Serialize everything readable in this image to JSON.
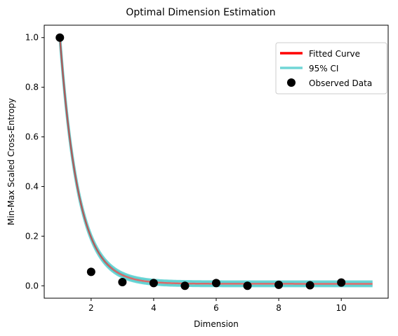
{
  "chart_data": {
    "type": "line",
    "title": "Optimal Dimension Estimation",
    "xlabel": "Dimension",
    "ylabel": "Min-Max Scaled Cross-Entropy",
    "xlim": [
      0.5,
      11.5
    ],
    "ylim": [
      -0.05,
      1.05
    ],
    "xticks": [
      2,
      4,
      6,
      8,
      10
    ],
    "yticks": [
      0.0,
      0.2,
      0.4,
      0.6,
      0.8,
      1.0
    ],
    "xtick_labels": [
      "2",
      "4",
      "6",
      "8",
      "10"
    ],
    "ytick_labels": [
      "0.0",
      "0.2",
      "0.4",
      "0.6",
      "0.8",
      "1.0"
    ],
    "grid": false,
    "legend_position": "top-right",
    "fitted_curve": {
      "name": "Fitted Curve",
      "color": "#ff0000",
      "model": "exponential decay",
      "x_range": [
        1,
        11
      ],
      "a": 0.994,
      "b": 1.67,
      "c": 0.008
    },
    "confidence_band": {
      "name": "95% CI",
      "color": "#40c8c8",
      "half_width": 0.009
    },
    "observed": {
      "name": "Observed Data",
      "color": "#000000",
      "x": [
        1,
        2,
        3,
        4,
        5,
        6,
        7,
        8,
        9,
        10
      ],
      "y": [
        1.0,
        0.056,
        0.015,
        0.011,
        0.0,
        0.011,
        0.0,
        0.004,
        0.002,
        0.013
      ]
    }
  }
}
